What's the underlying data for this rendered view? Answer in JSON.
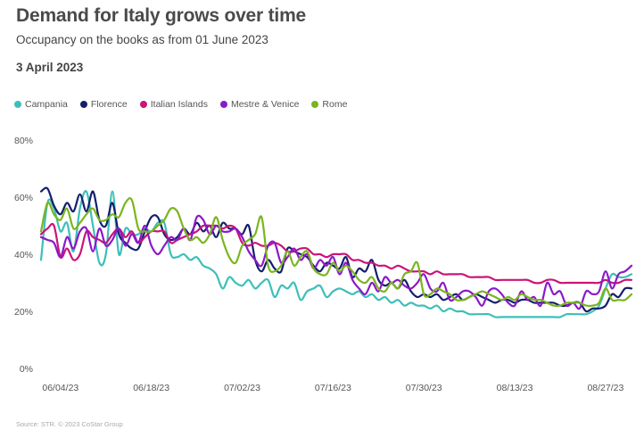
{
  "header": {
    "title": "Demand for Italy grows over time",
    "subtitle": "Occupancy on the books as from 01 June 2023",
    "date": "3 April 2023"
  },
  "source": "Source: STR. © 2023 CoStar Group",
  "chart_data": {
    "type": "line",
    "title": "Demand for Italy grows over time",
    "subtitle": "Occupancy on the books as from 01 June 2023",
    "xlabel": "",
    "ylabel": "",
    "ylim": [
      0,
      80
    ],
    "yticks": [
      "0%",
      "20%",
      "40%",
      "60%",
      "80%"
    ],
    "x_start_day": 0,
    "x_end_day": 91,
    "xticks": [
      {
        "day": 3,
        "label": "06/04/23"
      },
      {
        "day": 17,
        "label": "06/18/23"
      },
      {
        "day": 31,
        "label": "07/02/23"
      },
      {
        "day": 45,
        "label": "07/16/23"
      },
      {
        "day": 59,
        "label": "07/30/23"
      },
      {
        "day": 73,
        "label": "08/13/23"
      },
      {
        "day": 87,
        "label": "08/27/23"
      }
    ],
    "legend_position": "top-left",
    "series": [
      {
        "name": "Campania",
        "color": "#3cbfba",
        "values": [
          38,
          58,
          56,
          48,
          51,
          41,
          56,
          62,
          50,
          37,
          40,
          62,
          40,
          49,
          47,
          47,
          49,
          48,
          51,
          51,
          40,
          39,
          40,
          38,
          39,
          36,
          35,
          33,
          28,
          32,
          30,
          29,
          31,
          28,
          30,
          31,
          25,
          29,
          28,
          30,
          24,
          27,
          28,
          29,
          25,
          27,
          28,
          27,
          26,
          27,
          25,
          26,
          24,
          25,
          23,
          24,
          22,
          23,
          22,
          22,
          21,
          22,
          20,
          21,
          20,
          20,
          19,
          19,
          19,
          19,
          18,
          18,
          18,
          18,
          18,
          18,
          18,
          18,
          18,
          18,
          18,
          19,
          19,
          19,
          19,
          20,
          22,
          28,
          33,
          32,
          32,
          33
        ]
      },
      {
        "name": "Florence",
        "color": "#141e6e",
        "values": [
          62,
          63,
          57,
          54,
          58,
          55,
          61,
          55,
          62,
          52,
          50,
          58,
          47,
          44,
          42,
          42,
          48,
          53,
          53,
          47,
          45,
          46,
          49,
          47,
          51,
          48,
          50,
          46,
          51,
          49,
          49,
          47,
          50,
          38,
          34,
          38,
          35,
          34,
          42,
          41,
          40,
          39,
          36,
          34,
          37,
          36,
          35,
          39,
          32,
          35,
          34,
          38,
          31,
          29,
          30,
          28,
          31,
          27,
          25,
          26,
          25,
          26,
          24,
          25,
          26,
          24,
          25,
          26,
          25,
          24,
          23,
          24,
          24,
          23,
          24,
          24,
          23,
          23,
          23,
          23,
          22,
          22,
          23,
          23,
          20,
          21,
          21,
          22,
          26,
          25,
          28,
          28
        ]
      },
      {
        "name": "Italian Islands",
        "color": "#cc1377",
        "values": [
          47,
          49,
          50,
          39,
          42,
          38,
          40,
          48,
          46,
          45,
          44,
          47,
          49,
          46,
          48,
          44,
          46,
          48,
          48,
          48,
          44,
          45,
          46,
          47,
          48,
          50,
          50,
          50,
          49,
          50,
          49,
          44,
          43,
          44,
          43,
          43,
          44,
          43,
          41,
          41,
          42,
          42,
          40,
          40,
          39,
          40,
          40,
          40,
          38,
          38,
          37,
          37,
          36,
          36,
          35,
          36,
          35,
          34,
          34,
          34,
          33,
          34,
          33,
          33,
          33,
          33,
          32,
          32,
          32,
          32,
          31,
          31,
          31,
          31,
          31,
          31,
          30,
          30,
          31,
          31,
          30,
          30,
          30,
          30,
          30,
          30,
          30,
          31,
          30,
          30,
          31,
          31
        ]
      },
      {
        "name": "Mestre & Venice",
        "color": "#8a19c8",
        "values": [
          46,
          45,
          44,
          39,
          46,
          42,
          48,
          49,
          41,
          49,
          43,
          45,
          49,
          43,
          47,
          44,
          50,
          43,
          40,
          43,
          46,
          45,
          49,
          45,
          53,
          52,
          47,
          50,
          48,
          48,
          49,
          46,
          41,
          38,
          36,
          43,
          44,
          37,
          39,
          42,
          38,
          40,
          35,
          38,
          36,
          39,
          33,
          37,
          31,
          28,
          26,
          30,
          27,
          32,
          30,
          31,
          29,
          28,
          30,
          33,
          28,
          27,
          30,
          24,
          25,
          27,
          27,
          25,
          22,
          27,
          28,
          26,
          23,
          22,
          27,
          24,
          25,
          22,
          30,
          26,
          27,
          22,
          23,
          21,
          27,
          26,
          27,
          34,
          28,
          33,
          34,
          36
        ]
      },
      {
        "name": "Rome",
        "color": "#7ab51d",
        "values": [
          48,
          58,
          54,
          52,
          56,
          49,
          51,
          54,
          56,
          52,
          52,
          54,
          53,
          58,
          59,
          49,
          48,
          48,
          50,
          52,
          56,
          55,
          49,
          45,
          46,
          44,
          47,
          53,
          45,
          39,
          37,
          43,
          45,
          47,
          53,
          36,
          34,
          36,
          41,
          36,
          39,
          41,
          35,
          33,
          33,
          37,
          34,
          36,
          34,
          31,
          30,
          32,
          28,
          27,
          30,
          28,
          33,
          34,
          37,
          26,
          26,
          28,
          27,
          26,
          24,
          24,
          25,
          26,
          27,
          26,
          25,
          24,
          25,
          24,
          26,
          25,
          24,
          24,
          23,
          22,
          22,
          23,
          23,
          23,
          22,
          22,
          23,
          28,
          24,
          24,
          24,
          26
        ]
      }
    ]
  }
}
